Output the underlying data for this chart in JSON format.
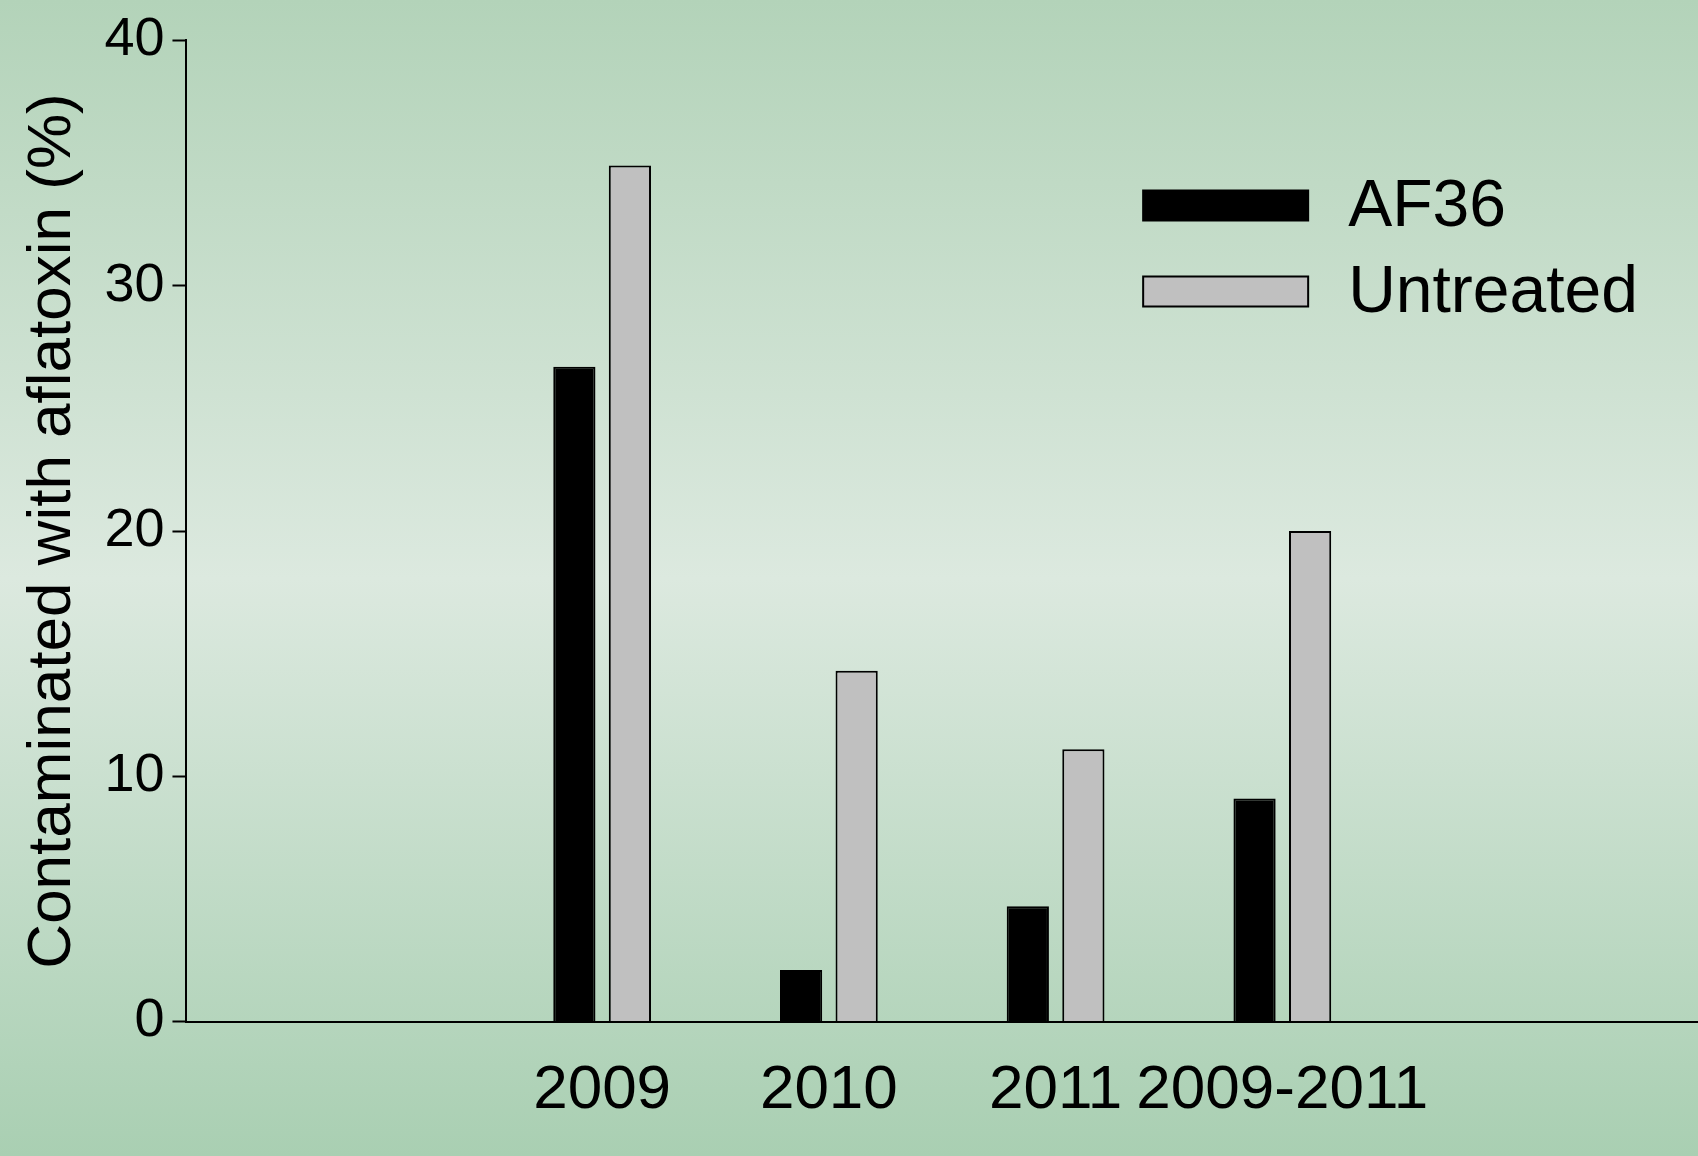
{
  "chart_data": {
    "type": "bar",
    "ylabel": "Contaminated with aflatoxin (%)",
    "categories": [
      "2009",
      "2010",
      "2011",
      "2009-2011"
    ],
    "series": [
      {
        "name": "AF36",
        "color": "#000000",
        "values": [
          26.7,
          2.1,
          4.7,
          9.1
        ]
      },
      {
        "name": "Untreated",
        "color": "#c0c0c0",
        "values": [
          34.9,
          14.3,
          11.1,
          20.0
        ]
      }
    ],
    "ylim": [
      0,
      40
    ],
    "yticks": [
      0,
      10,
      20,
      30,
      40
    ],
    "grid": false,
    "legend": "top right"
  }
}
